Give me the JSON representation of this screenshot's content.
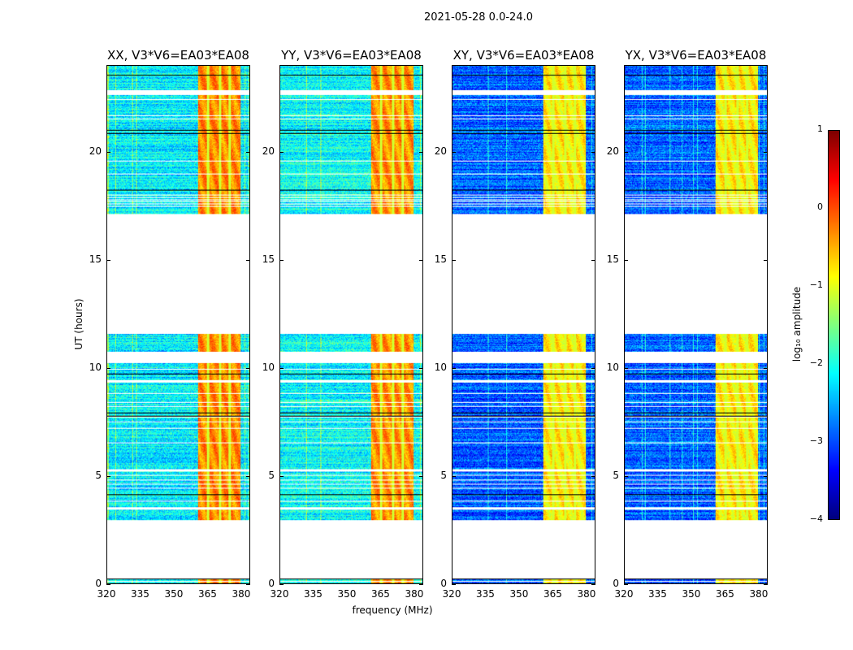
{
  "chart_data": {
    "type": "heatmap",
    "title": "2021-05-28 0.0-24.0",
    "xlabel": "frequency (MHz)",
    "ylabel": "UT (hours)",
    "xlim": [
      320,
      384
    ],
    "ylim": [
      0,
      24
    ],
    "xticks": [
      320,
      335,
      350,
      365,
      380
    ],
    "yticks": [
      0,
      5,
      10,
      15,
      20
    ],
    "panels": [
      {
        "title": "XX, V3*V6=EA03*EA08",
        "background_level": -2.2,
        "band_level": -0.3
      },
      {
        "title": "YY, V3*V6=EA03*EA08",
        "background_level": -2.1,
        "band_level": -0.35
      },
      {
        "title": "XY, V3*V6=EA03*EA08",
        "background_level": -2.9,
        "band_level": -0.8
      },
      {
        "title": "YX, V3*V6=EA03*EA08",
        "background_level": -2.9,
        "band_level": -0.8
      }
    ],
    "bright_band_mhz": [
      360.5,
      380
    ],
    "band_notches_mhz": [
      365.2,
      370.5,
      375
    ],
    "data_segments_hours": [
      [
        17.15,
        24
      ],
      [
        9.44,
        11.57
      ],
      [
        2.96,
        9.33
      ],
      [
        0,
        0.22
      ]
    ],
    "gap_hours": [
      [
        22.65,
        22.9
      ],
      [
        10.22,
        10.75
      ],
      [
        3.45,
        3.55
      ],
      [
        5.2,
        5.3
      ],
      [
        8.4,
        8.45
      ],
      [
        0.1,
        0.14
      ]
    ],
    "thin_gaps_hours": [
      22.45,
      21.7,
      21.55,
      19.6,
      19.0,
      18.0,
      17.9,
      17.8,
      17.7,
      17.6,
      17.5,
      9.95,
      8.8,
      8.2,
      7.7,
      7.5,
      7.2,
      6.5,
      5.0,
      4.8,
      4.6,
      4.4,
      3.8
    ],
    "black_lines_hours": [
      23.55,
      21.0,
      20.85,
      18.25,
      9.7,
      7.9,
      7.75,
      4.1,
      0.2
    ],
    "colorbar": {
      "label": "log₁₀ amplitude",
      "colormap": "jet",
      "range": [
        -4,
        1
      ],
      "ticks": [
        "1",
        "0",
        "−1",
        "−2",
        "−3",
        "−4"
      ]
    }
  }
}
